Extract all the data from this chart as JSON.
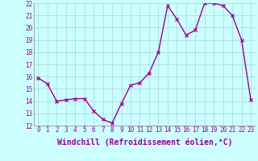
{
  "hours": [
    0,
    1,
    2,
    3,
    4,
    5,
    6,
    7,
    8,
    9,
    10,
    11,
    12,
    13,
    14,
    15,
    16,
    17,
    18,
    19,
    20,
    21,
    22,
    23
  ],
  "values": [
    15.9,
    15.4,
    14.0,
    14.1,
    14.2,
    14.2,
    13.2,
    12.5,
    12.2,
    13.8,
    15.3,
    15.5,
    16.3,
    18.0,
    21.8,
    20.7,
    19.4,
    19.8,
    22.0,
    22.0,
    21.8,
    21.0,
    19.0,
    14.1
  ],
  "ylim": [
    12,
    22
  ],
  "yticks": [
    12,
    13,
    14,
    15,
    16,
    17,
    18,
    19,
    20,
    21,
    22
  ],
  "xticks": [
    0,
    1,
    2,
    3,
    4,
    5,
    6,
    7,
    8,
    9,
    10,
    11,
    12,
    13,
    14,
    15,
    16,
    17,
    18,
    19,
    20,
    21,
    22,
    23
  ],
  "line_color": "#990099",
  "marker": "x",
  "bg_color": "#ccffff",
  "grid_color": "#aadddd",
  "xlabel": "Windchill (Refroidissement éolien,°C)",
  "xlabel_color": "#990099",
  "tick_color": "#990099",
  "tick_fontsize": 5.5,
  "xlabel_fontsize": 7.0,
  "line_width": 1.0,
  "marker_size": 3
}
